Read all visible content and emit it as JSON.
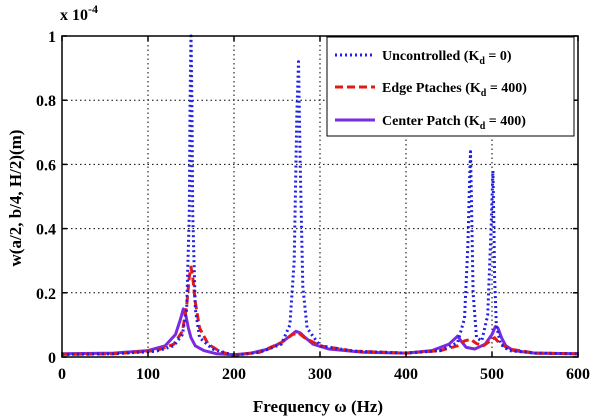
{
  "chart_data": {
    "type": "line",
    "xlabel": "Frequency ω (Hz)",
    "ylabel": "w(a/2, b/4, H/2)(m)",
    "scale_base": "x 10",
    "scale_exponent": "-4",
    "xlim": [
      0,
      600
    ],
    "ylim": [
      0,
      1
    ],
    "xticks": [
      0,
      100,
      200,
      300,
      400,
      500,
      600
    ],
    "yticks": [
      0,
      0.2,
      0.4,
      0.6,
      0.8,
      1
    ],
    "xtick_labels": [
      "0",
      "100",
      "200",
      "300",
      "400",
      "500",
      "600"
    ],
    "ytick_labels": [
      "0",
      "0.2",
      "0.4",
      "0.6",
      "0.8",
      "1"
    ],
    "grid": true,
    "legend_position": "top-right",
    "series": [
      {
        "name": "Uncontrolled (K",
        "name_sub": "d",
        "name_tail": " = 0)",
        "color": "#1f1fe6",
        "dash": "dotted",
        "x": [
          0,
          60,
          110,
          130,
          140,
          145,
          148,
          149,
          150,
          151,
          152,
          155,
          160,
          175,
          200,
          230,
          255,
          265,
          270,
          273,
          275,
          277,
          280,
          285,
          300,
          340,
          400,
          440,
          460,
          468,
          472,
          474,
          475,
          476,
          478,
          482,
          488,
          495,
          499,
          501,
          502,
          503,
          505,
          510,
          520,
          550,
          600
        ],
        "y": [
          0.008,
          0.01,
          0.018,
          0.035,
          0.07,
          0.15,
          0.45,
          0.8,
          1.0,
          0.8,
          0.45,
          0.15,
          0.06,
          0.025,
          0.005,
          0.015,
          0.04,
          0.1,
          0.3,
          0.75,
          0.92,
          0.6,
          0.22,
          0.09,
          0.035,
          0.018,
          0.012,
          0.02,
          0.045,
          0.12,
          0.35,
          0.55,
          0.64,
          0.5,
          0.2,
          0.06,
          0.05,
          0.13,
          0.4,
          0.58,
          0.45,
          0.25,
          0.1,
          0.04,
          0.02,
          0.012,
          0.01
        ]
      },
      {
        "name": "Edge Ptaches (K",
        "name_sub": "d",
        "name_tail": " = 400)",
        "color": "#e61919",
        "dash": "dashed",
        "x": [
          0,
          60,
          110,
          130,
          140,
          145,
          148,
          150,
          152,
          155,
          160,
          170,
          185,
          200,
          230,
          255,
          268,
          275,
          282,
          300,
          340,
          400,
          440,
          460,
          468,
          475,
          482,
          490,
          498,
          503,
          508,
          520,
          550,
          600
        ],
        "y": [
          0.008,
          0.01,
          0.02,
          0.04,
          0.08,
          0.16,
          0.25,
          0.28,
          0.25,
          0.17,
          0.09,
          0.04,
          0.015,
          0.006,
          0.015,
          0.045,
          0.07,
          0.075,
          0.06,
          0.035,
          0.018,
          0.012,
          0.02,
          0.035,
          0.05,
          0.055,
          0.042,
          0.035,
          0.05,
          0.06,
          0.045,
          0.025,
          0.012,
          0.01
        ]
      },
      {
        "name": "Center Patch (K",
        "name_sub": "d",
        "name_tail": " = 400)",
        "color": "#7a2be0",
        "dash": "solid",
        "x": [
          0,
          60,
          100,
          120,
          132,
          138,
          141,
          144,
          147,
          150,
          155,
          165,
          180,
          200,
          220,
          240,
          255,
          265,
          272,
          277,
          283,
          292,
          310,
          350,
          400,
          430,
          450,
          456,
          460,
          464,
          470,
          480,
          492,
          500,
          504,
          507,
          511,
          516,
          525,
          550,
          600
        ],
        "y": [
          0.01,
          0.012,
          0.02,
          0.035,
          0.07,
          0.12,
          0.15,
          0.13,
          0.09,
          0.06,
          0.035,
          0.02,
          0.01,
          0.007,
          0.012,
          0.025,
          0.045,
          0.065,
          0.08,
          0.075,
          0.06,
          0.04,
          0.025,
          0.015,
          0.012,
          0.02,
          0.04,
          0.055,
          0.065,
          0.05,
          0.03,
          0.025,
          0.04,
          0.07,
          0.095,
          0.09,
          0.06,
          0.035,
          0.02,
          0.012,
          0.01
        ]
      }
    ]
  }
}
